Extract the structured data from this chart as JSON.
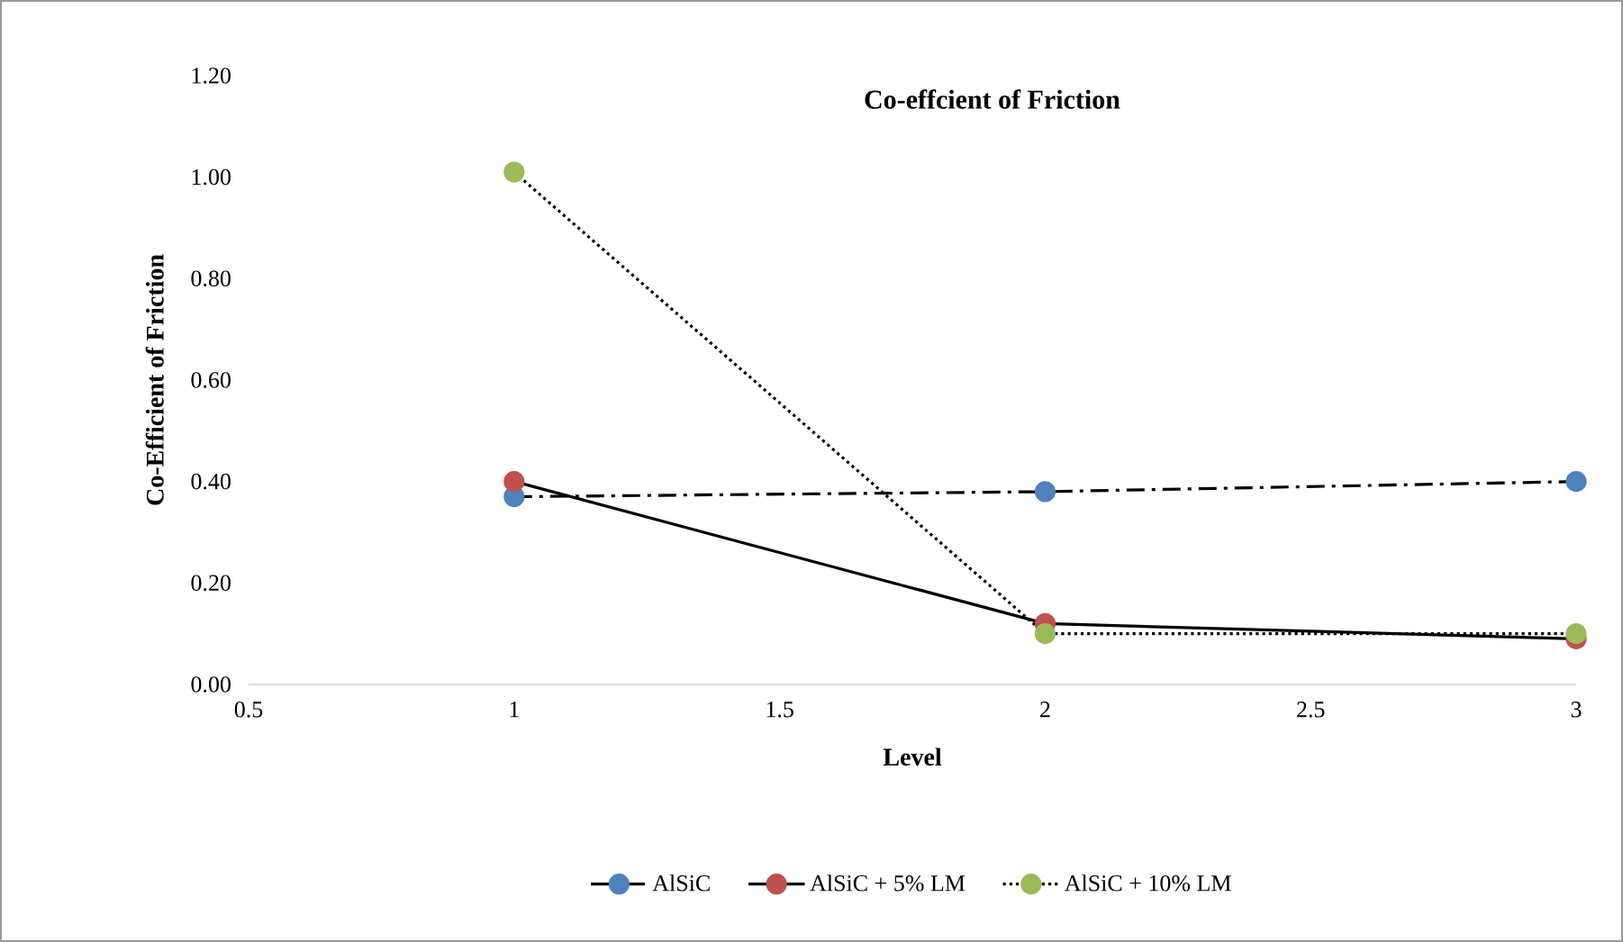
{
  "chart_data": {
    "type": "line",
    "title": "Co-effcient of Friction",
    "xlabel": "Level",
    "ylabel": "Co-Efficient of Friction",
    "x": [
      1,
      2,
      3
    ],
    "series": [
      {
        "name": "AlSiC",
        "color": "#4f81bd",
        "values": [
          0.37,
          0.38,
          0.4
        ],
        "line_style": "dashed"
      },
      {
        "name": "AlSiC + 5% LM",
        "color": "#c0504d",
        "values": [
          0.4,
          0.12,
          0.09
        ],
        "line_style": "solid"
      },
      {
        "name": "AlSiC + 10% LM",
        "color": "#9bbb59",
        "values": [
          1.01,
          0.1,
          0.1
        ],
        "line_style": "dotted"
      }
    ],
    "xlim": [
      0.5,
      3
    ],
    "xticks": [
      0.5,
      1,
      1.5,
      2,
      2.5,
      3
    ],
    "ylim": [
      0,
      1.2
    ],
    "yticks": [
      {
        "value": 0,
        "label": "0.00"
      },
      {
        "value": 0.2,
        "label": "0.20"
      },
      {
        "value": 0.4,
        "label": "0.40"
      },
      {
        "value": 0.6,
        "label": "0.60"
      },
      {
        "value": 0.8,
        "label": "0.80"
      },
      {
        "value": 1.0,
        "label": "1.00"
      },
      {
        "value": 1.2,
        "label": "1.20"
      }
    ],
    "marker": "circle",
    "legend": "bottom",
    "grid": false
  }
}
